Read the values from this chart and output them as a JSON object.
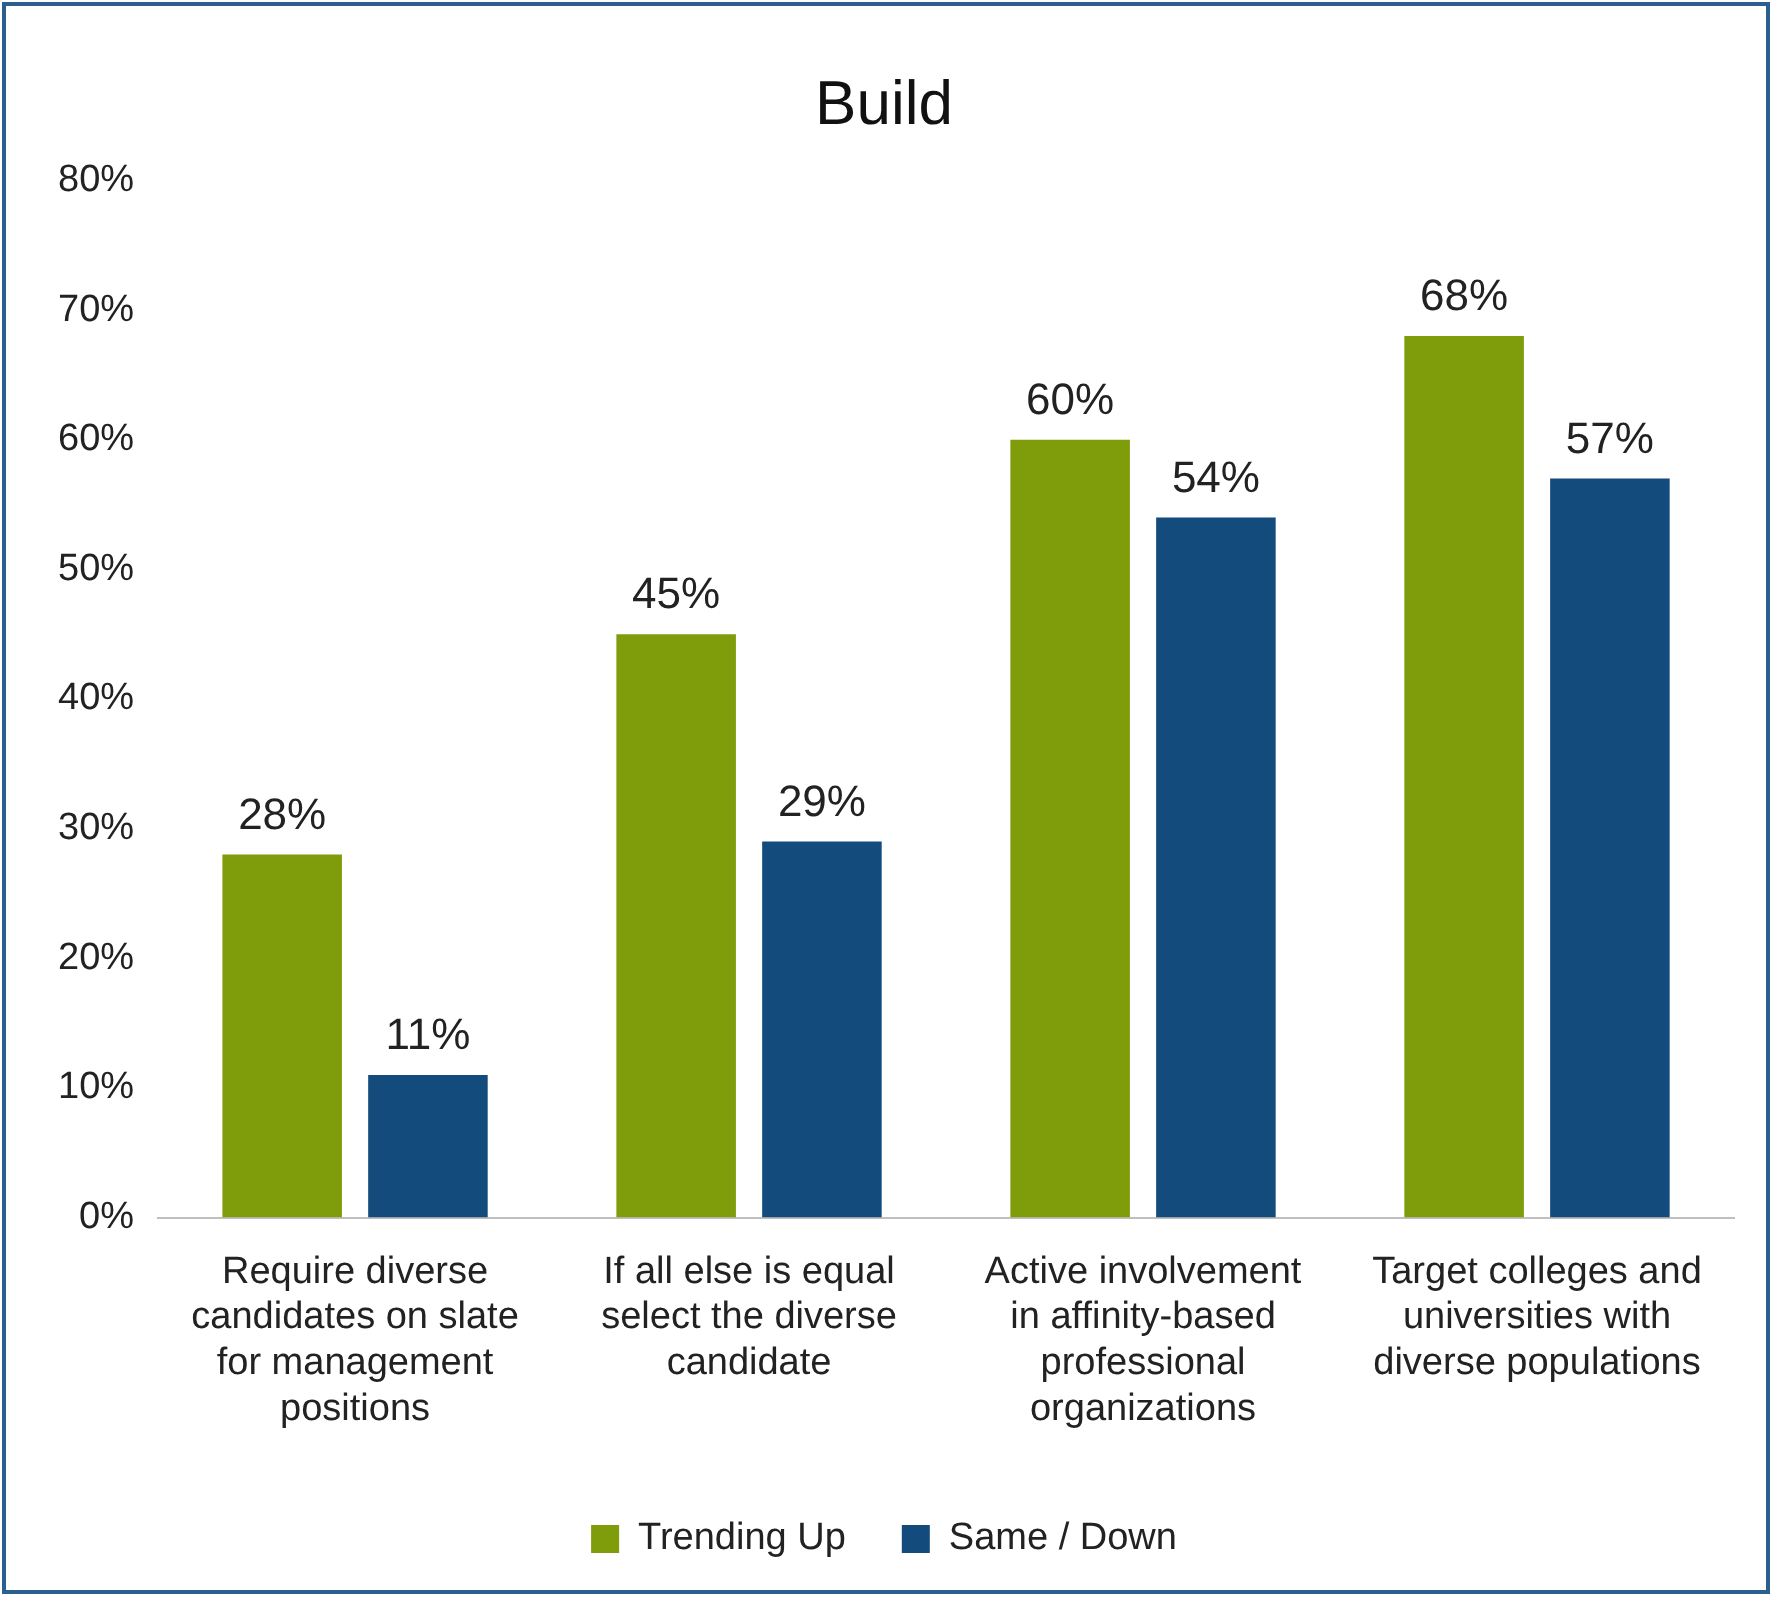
{
  "chart_data": {
    "type": "bar",
    "title": "Build",
    "categories": [
      "Require diverse candidates on slate for management positions",
      "If all else is equal select the diverse candidate",
      "Active involvement in affinity-based professional organizations",
      "Target colleges and universities with diverse populations"
    ],
    "series": [
      {
        "name": "Trending Up",
        "color": "#7f9c0a",
        "values": [
          28,
          45,
          60,
          68
        ],
        "value_labels": [
          "28%",
          "45%",
          "60%",
          "68%"
        ]
      },
      {
        "name": "Same / Down",
        "color": "#134c7c",
        "values": [
          11,
          29,
          54,
          57
        ],
        "value_labels": [
          "11%",
          "29%",
          "54%",
          "57%"
        ]
      }
    ],
    "ylim": [
      0,
      80
    ],
    "yticks": [
      {
        "value": 0,
        "label": "0%"
      },
      {
        "value": 10,
        "label": "10%"
      },
      {
        "value": 20,
        "label": "20%"
      },
      {
        "value": 30,
        "label": "30%"
      },
      {
        "value": 40,
        "label": "40%"
      },
      {
        "value": 50,
        "label": "50%"
      },
      {
        "value": 60,
        "label": "60%"
      },
      {
        "value": 70,
        "label": "70%"
      },
      {
        "value": 80,
        "label": "80%"
      }
    ],
    "grid": false,
    "legend": "bottom"
  }
}
